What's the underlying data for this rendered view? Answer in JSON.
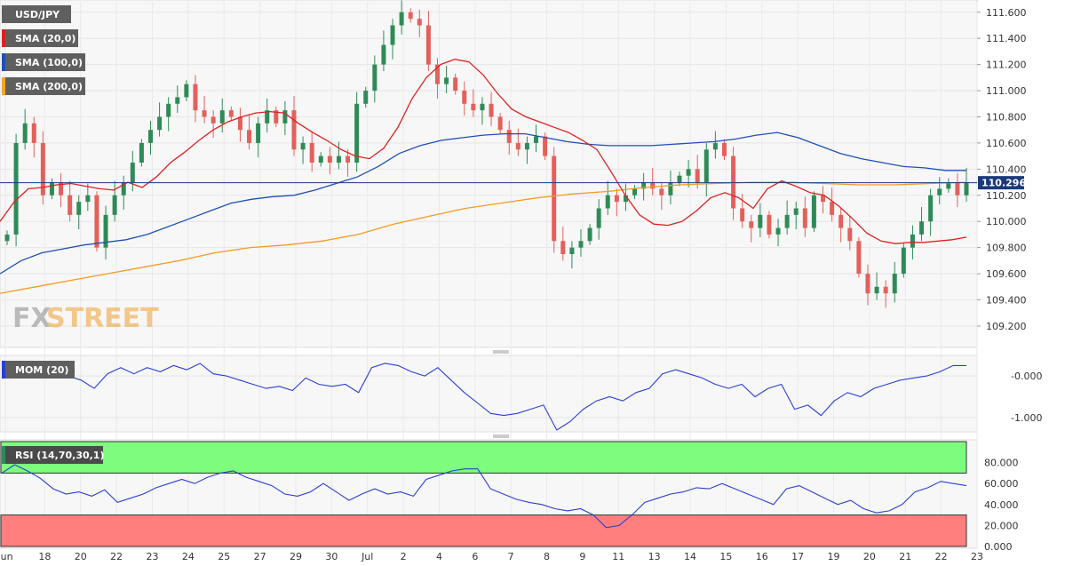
{
  "chart_data": {
    "type": "candlestick",
    "symbol": "USD/JPY",
    "last_price": "110.296",
    "watermark": {
      "fx": "FX",
      "street": "STREET"
    },
    "legend": [
      {
        "label": "USD/JPY",
        "color": "#5f5f5f"
      },
      {
        "label": "SMA (20,0)",
        "color": "#e02020"
      },
      {
        "label": "SMA (100,0)",
        "color": "#1f4fb8"
      },
      {
        "label": "SMA (200,0)",
        "color": "#f5a623"
      }
    ],
    "colors": {
      "up": "#2e8b57",
      "down": "#e4605a",
      "sma20": "#e02020",
      "sma100": "#1f4fb8",
      "sma200": "#f59a23",
      "osc": "#2a3fd0",
      "last_line": "#1a3a7a"
    },
    "price_axis": {
      "ylim": [
        109.05,
        111.68
      ],
      "ticks": [
        "111.600",
        "111.400",
        "111.200",
        "111.000",
        "110.800",
        "110.600",
        "110.400",
        "110.200",
        "110.000",
        "109.800",
        "109.600",
        "109.400",
        "109.200"
      ]
    },
    "x_axis": {
      "ticks": [
        "Jun",
        "18",
        "20",
        "22",
        "23",
        "24",
        "25",
        "27",
        "29",
        "30",
        "Jul",
        "2",
        "4",
        "6",
        "7",
        "8",
        "9",
        "11",
        "13",
        "14",
        "15",
        "16",
        "17",
        "19",
        "20",
        "21",
        "22",
        "23"
      ]
    },
    "sma20": [
      110.0,
      110.15,
      110.25,
      110.26,
      110.28,
      110.29,
      110.27,
      110.25,
      110.24,
      110.3,
      110.26,
      110.34,
      110.45,
      110.53,
      110.62,
      110.7,
      110.76,
      110.8,
      110.83,
      110.84,
      110.83,
      110.75,
      110.68,
      110.62,
      110.55,
      110.5,
      110.48,
      110.56,
      110.72,
      110.94,
      111.1,
      111.2,
      111.24,
      111.22,
      111.12,
      110.98,
      110.86,
      110.8,
      110.76,
      110.72,
      110.68,
      110.62,
      110.55,
      110.38,
      110.2,
      110.05,
      109.98,
      109.97,
      110.0,
      110.08,
      110.18,
      110.22,
      110.18,
      110.1,
      110.25,
      110.31,
      110.27,
      110.22,
      110.2,
      110.12,
      110.02,
      109.91,
      109.85,
      109.83,
      109.84,
      109.84,
      109.85,
      109.86,
      109.88
    ],
    "sma100": [
      109.6,
      109.7,
      109.76,
      109.79,
      109.82,
      109.84,
      109.86,
      109.9,
      109.96,
      110.02,
      110.08,
      110.14,
      110.17,
      110.19,
      110.2,
      110.24,
      110.29,
      110.34,
      110.42,
      110.52,
      110.58,
      110.62,
      110.64,
      110.66,
      110.67,
      110.67,
      110.64,
      110.61,
      110.59,
      110.58,
      110.58,
      110.58,
      110.59,
      110.6,
      110.61,
      110.63,
      110.66,
      110.68,
      110.64,
      110.58,
      110.52,
      110.48,
      110.45,
      110.42,
      110.41,
      110.39,
      110.39
    ],
    "sma200": [
      109.45,
      109.5,
      109.55,
      109.6,
      109.65,
      109.7,
      109.76,
      109.8,
      109.82,
      109.85,
      109.9,
      109.98,
      110.04,
      110.1,
      110.14,
      110.18,
      110.21,
      110.23,
      110.26,
      110.28,
      110.29,
      110.3,
      110.3,
      110.29,
      110.28,
      110.28,
      110.29,
      110.3
    ],
    "mom": {
      "label": "MOM (20)",
      "ylim": [
        -1.3,
        0.45
      ],
      "ticks": [
        "-0.000",
        "-1.000"
      ],
      "values": [
        0.25,
        0.3,
        0.05,
        0.15,
        0.2,
        0.0,
        -0.1,
        -0.3,
        0.05,
        0.2,
        0.05,
        0.2,
        0.1,
        0.25,
        0.15,
        0.3,
        0.05,
        0.0,
        -0.1,
        -0.2,
        -0.3,
        -0.25,
        -0.35,
        -0.05,
        -0.2,
        -0.25,
        -0.2,
        -0.4,
        0.2,
        0.3,
        0.25,
        0.1,
        0.0,
        0.2,
        -0.1,
        -0.4,
        -0.65,
        -0.9,
        -0.95,
        -0.9,
        -0.8,
        -0.7,
        -1.3,
        -1.1,
        -0.8,
        -0.6,
        -0.5,
        -0.6,
        -0.4,
        -0.3,
        0.05,
        0.15,
        0.05,
        -0.05,
        -0.2,
        -0.3,
        -0.2,
        -0.5,
        -0.3,
        -0.2,
        -0.8,
        -0.7,
        -0.95,
        -0.6,
        -0.4,
        -0.5,
        -0.3,
        -0.2,
        -0.1,
        -0.05,
        0.0,
        0.1,
        0.25,
        0.25
      ]
    },
    "rsi": {
      "label": "RSI (14,70,30,1)",
      "ylim": [
        0,
        100
      ],
      "overbought": 70,
      "oversold": 30,
      "ticks": [
        "80.000",
        "60.000",
        "40.000",
        "20.000",
        "0.000"
      ],
      "values": [
        70,
        78,
        72,
        65,
        55,
        50,
        52,
        48,
        54,
        42,
        46,
        50,
        56,
        60,
        64,
        60,
        66,
        70,
        72,
        66,
        62,
        58,
        50,
        48,
        52,
        60,
        52,
        44,
        50,
        55,
        50,
        52,
        48,
        64,
        68,
        72,
        74,
        74,
        55,
        50,
        45,
        42,
        40,
        36,
        34,
        36,
        30,
        18,
        20,
        30,
        42,
        46,
        50,
        52,
        56,
        55,
        60,
        55,
        50,
        45,
        40,
        55,
        58,
        52,
        46,
        40,
        44,
        36,
        32,
        34,
        40,
        52,
        56,
        62,
        60,
        58
      ],
      "overbought_label_hidden": ""
    }
  }
}
